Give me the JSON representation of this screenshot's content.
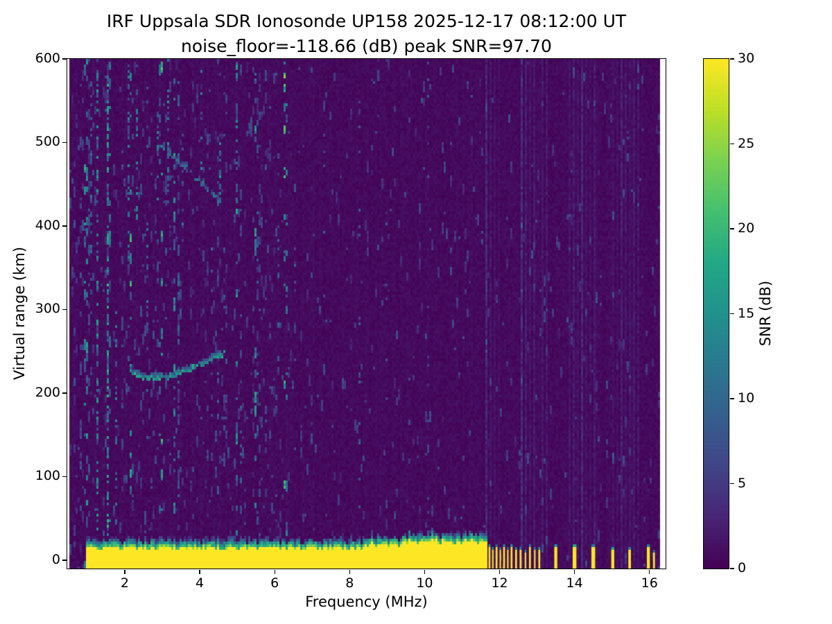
{
  "chart_data": {
    "type": "heatmap",
    "title": "IRF Uppsala SDR Ionosonde UP158 2025-12-17 08:12:00  UT",
    "subtitle": "noise_floor=-118.66 (dB) peak SNR=97.70",
    "station": "IRF Uppsala SDR Ionosonde UP158",
    "timestamp_ut": "2025-12-17 08:12:00",
    "noise_floor_db": -118.66,
    "peak_snr_db": 97.7,
    "xlabel": "Frequency (MHz)",
    "ylabel": "Virtual range (km)",
    "xlim": [
      0.465,
      16.43
    ],
    "ylim": [
      -10,
      600
    ],
    "xticks": [
      2,
      4,
      6,
      8,
      10,
      12,
      14,
      16
    ],
    "yticks": [
      0,
      100,
      200,
      300,
      400,
      500,
      600
    ],
    "grid": false,
    "colorbar": {
      "label": "SNR (dB)",
      "min": 0,
      "max": 30,
      "ticks": [
        0,
        5,
        10,
        15,
        20,
        25,
        30
      ],
      "colormap": "viridis",
      "stops": [
        [
          0,
          "#440154"
        ],
        [
          0.1,
          "#482475"
        ],
        [
          0.2,
          "#414487"
        ],
        [
          0.3,
          "#355f8d"
        ],
        [
          0.4,
          "#2a788e"
        ],
        [
          0.5,
          "#21918c"
        ],
        [
          0.6,
          "#22a884"
        ],
        [
          0.7,
          "#44bf70"
        ],
        [
          0.8,
          "#7ad151"
        ],
        [
          0.9,
          "#bddf26"
        ],
        [
          1,
          "#fde725"
        ]
      ]
    },
    "features": {
      "ground_return": {
        "f0": 0.98,
        "f1": 11.65,
        "top_km_base": 11,
        "hump_f0": 8.3,
        "hump_extra_km": 4,
        "snr_db": 30
      },
      "echo_traces": [
        {
          "name": "first-hop-echo",
          "points": [
            [
              2.15,
              224
            ],
            [
              2.5,
              219
            ],
            [
              3.2,
              220
            ],
            [
              4.0,
              234
            ],
            [
              4.65,
              248
            ]
          ],
          "snr_db": 15,
          "density": 0.8
        },
        {
          "name": "second-hop-echo",
          "points": [
            [
              2.95,
              497
            ],
            [
              4.6,
              428
            ]
          ],
          "snr_db": 10,
          "density": 0.5
        }
      ],
      "noise_streaks": [
        [
          1.28,
          -10,
          600,
          0.5,
          14
        ],
        [
          1.52,
          -10,
          600,
          0.55,
          16
        ],
        [
          1.1,
          280,
          600,
          0.3,
          10
        ],
        [
          1.75,
          0,
          300,
          0.3,
          11
        ],
        [
          2.08,
          340,
          600,
          0.35,
          12
        ],
        [
          2.35,
          410,
          560,
          0.4,
          12
        ],
        [
          2.62,
          140,
          600,
          0.22,
          10
        ],
        [
          2.9,
          420,
          540,
          0.3,
          11
        ],
        [
          3.18,
          430,
          600,
          0.45,
          13
        ],
        [
          3.3,
          60,
          220,
          0.3,
          10
        ],
        [
          3.55,
          380,
          520,
          0.25,
          10
        ],
        [
          4.05,
          470,
          600,
          0.3,
          11
        ],
        [
          4.3,
          190,
          390,
          0.2,
          9
        ],
        [
          4.55,
          430,
          500,
          0.5,
          14
        ],
        [
          5.0,
          470,
          600,
          0.35,
          12
        ],
        [
          5.1,
          90,
          310,
          0.2,
          9
        ],
        [
          5.55,
          200,
          420,
          0.18,
          9
        ],
        [
          6.1,
          240,
          460,
          0.2,
          9
        ],
        [
          6.55,
          100,
          600,
          0.1,
          8
        ],
        [
          7.3,
          300,
          520,
          0.12,
          8
        ],
        [
          8.25,
          60,
          600,
          0.12,
          8
        ],
        [
          9.0,
          200,
          480,
          0.1,
          7
        ],
        [
          10.1,
          -10,
          600,
          0.1,
          7
        ]
      ],
      "hf_blips": [
        [
          11.73,
          13,
          0.05
        ],
        [
          11.82,
          11,
          0.04
        ],
        [
          11.92,
          14,
          0.05
        ],
        [
          12.02,
          10,
          0.04
        ],
        [
          12.12,
          13,
          0.05
        ],
        [
          12.22,
          11,
          0.04
        ],
        [
          12.32,
          14,
          0.05
        ],
        [
          12.44,
          10,
          0.05
        ],
        [
          12.56,
          12,
          0.05
        ],
        [
          12.69,
          9,
          0.04
        ],
        [
          12.81,
          13,
          0.05
        ],
        [
          12.94,
          10,
          0.04
        ],
        [
          13.06,
          12,
          0.05
        ],
        [
          13.5,
          13,
          0.08
        ],
        [
          14.0,
          15,
          0.1
        ],
        [
          14.5,
          14,
          0.1
        ],
        [
          15.02,
          12,
          0.08
        ],
        [
          15.47,
          11,
          0.07
        ],
        [
          15.97,
          13,
          0.08
        ],
        [
          16.12,
          9,
          0.05
        ]
      ]
    },
    "render": {
      "data_fmin": 0.5,
      "data_fmax": 16.3,
      "noise_seed": 20251217
    }
  }
}
